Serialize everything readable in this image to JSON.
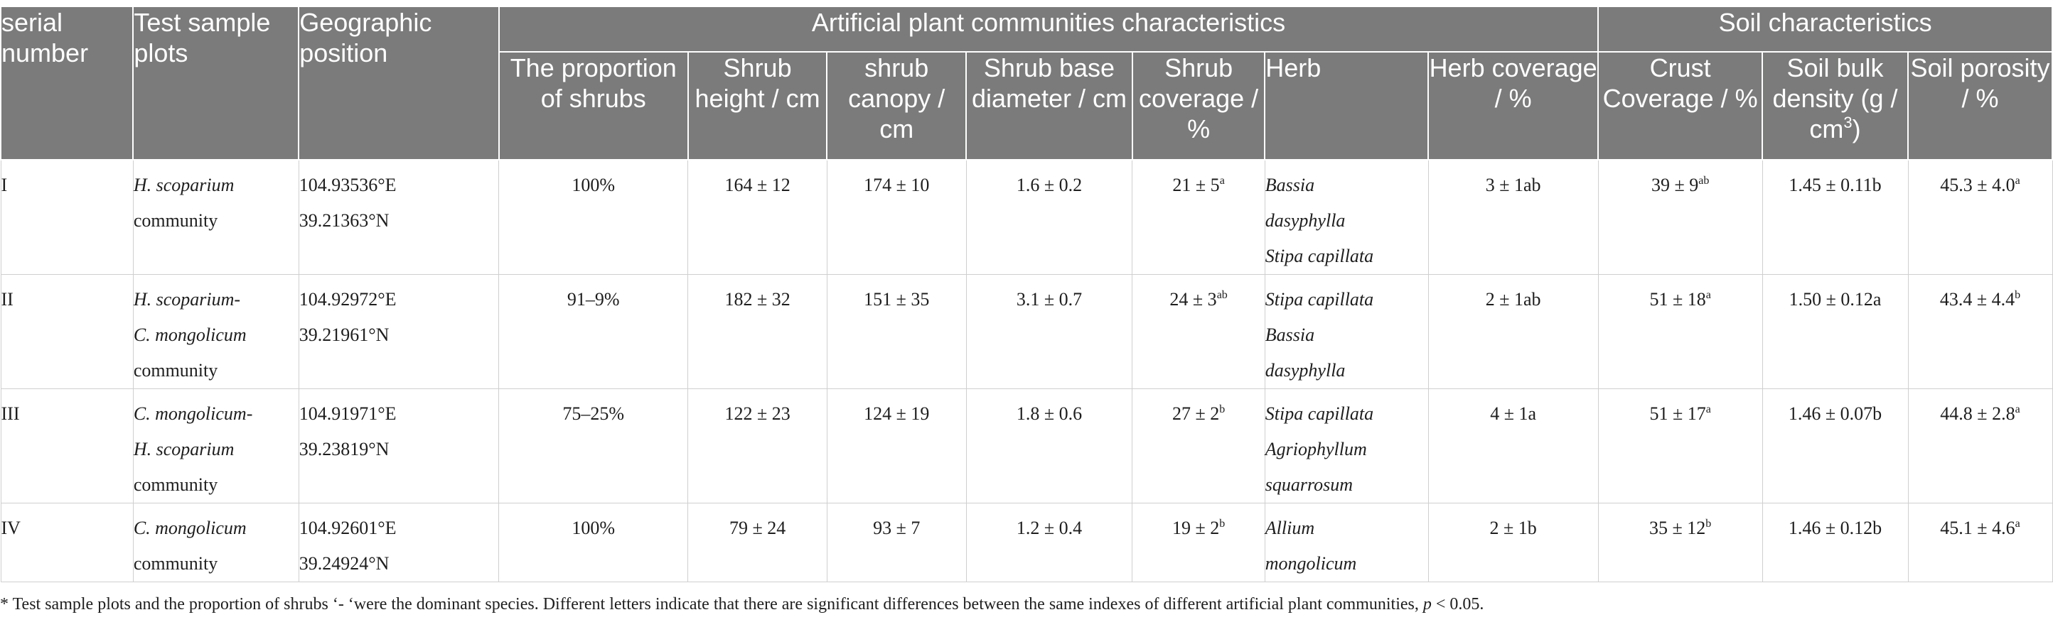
{
  "headers": {
    "serial_number": "serial number",
    "test_sample_plots": "Test sample plots",
    "geographic_position": "Geographic position",
    "group_artificial": "Artificial plant communities characteristics",
    "group_soil": "Soil characteristics",
    "proportion_shrubs": "The proportion of shrubs",
    "shrub_height": "Shrub height / cm",
    "shrub_canopy": "shrub canopy / cm",
    "shrub_base_diameter": "Shrub base diameter / cm",
    "shrub_coverage": "Shrub coverage / %",
    "herb": "Herb",
    "herb_coverage": "Herb coverage / %",
    "crust_coverage": "Crust Coverage / %",
    "soil_bulk_density": "Soil bulk density (g / cm",
    "soil_bulk_density_sup": "3",
    "soil_bulk_density_end": ")",
    "soil_porosity": "Soil porosity / %"
  },
  "rows": [
    {
      "serial": "I",
      "plot_lines": [
        "H. scoparium",
        "community"
      ],
      "position": [
        "104.93536°E",
        "39.21363°N"
      ],
      "proportion": "100%",
      "height": "164 ± 12",
      "canopy": "174 ± 10",
      "base_diameter": "1.6 ± 0.2",
      "shrub_coverage": "21 ± 5",
      "shrub_coverage_sup": "a",
      "herb_lines": [
        "Bassia",
        "dasyphylla",
        "Stipa capillata"
      ],
      "herb_coverage": "3 ± 1ab",
      "crust": "39 ± 9",
      "crust_sup": "ab",
      "bulk_density": "1.45 ± 0.11b",
      "porosity": "45.3 ± 4.0",
      "porosity_sup": "a"
    },
    {
      "serial": "II",
      "plot_lines": [
        "H. scoparium-",
        "C. mongolicum",
        "community"
      ],
      "position": [
        "104.92972°E",
        "39.21961°N"
      ],
      "proportion": "91–9%",
      "height": "182 ± 32",
      "canopy": "151 ± 35",
      "base_diameter": "3.1 ± 0.7",
      "shrub_coverage": "24 ± 3",
      "shrub_coverage_sup": "ab",
      "herb_lines": [
        "Stipa capillata",
        "Bassia",
        "dasyphylla"
      ],
      "herb_coverage": "2 ± 1ab",
      "crust": "51 ± 18",
      "crust_sup": "a",
      "bulk_density": "1.50 ± 0.12a",
      "porosity": "43.4 ± 4.4",
      "porosity_sup": "b"
    },
    {
      "serial": "III",
      "plot_lines": [
        "C. mongolicum-",
        "H. scoparium",
        "community"
      ],
      "position": [
        "104.91971°E",
        "39.23819°N"
      ],
      "proportion": "75–25%",
      "height": "122 ± 23",
      "canopy": "124 ± 19",
      "base_diameter": "1.8 ± 0.6",
      "shrub_coverage": "27 ± 2",
      "shrub_coverage_sup": "b",
      "herb_lines": [
        "Stipa capillata",
        "Agriophyllum",
        "squarrosum"
      ],
      "herb_coverage": "4 ± 1a",
      "crust": "51 ± 17",
      "crust_sup": "a",
      "bulk_density": "1.46 ± 0.07b",
      "porosity": "44.8 ± 2.8",
      "porosity_sup": "a"
    },
    {
      "serial": "IV",
      "plot_lines": [
        "C. mongolicum",
        "community"
      ],
      "position": [
        "104.92601°E",
        "39.24924°N"
      ],
      "proportion": "100%",
      "height": "79 ± 24",
      "canopy": "93 ± 7",
      "base_diameter": "1.2 ± 0.4",
      "shrub_coverage": "19 ± 2",
      "shrub_coverage_sup": "b",
      "herb_lines": [
        "Allium",
        "mongolicum"
      ],
      "herb_coverage": "2 ± 1b",
      "crust": "35 ± 12",
      "crust_sup": "b",
      "bulk_density": "1.46 ± 0.12b",
      "porosity": "45.1 ± 4.6",
      "porosity_sup": "a"
    }
  ],
  "footnote": {
    "text": "* Test sample plots and the proportion of shrubs ‘- ‘were the dominant species. Different letters indicate that there are significant differences between the same indexes of different artificial plant communities, ",
    "p_symbol": "p",
    "tail": " < 0.05."
  }
}
